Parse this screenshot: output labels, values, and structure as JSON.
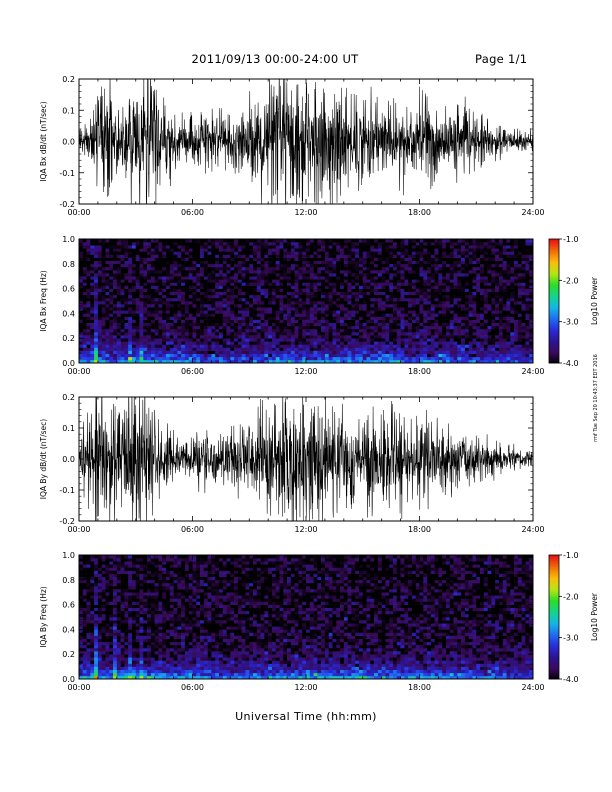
{
  "header": {
    "title": "2011/09/13  00:00-24:00 UT",
    "page": "Page 1/1"
  },
  "footer": {
    "xlabel": "Universal Time (hh:mm)",
    "side_note": "rmf Tue Sep 20 10:43:37 EDT 2016"
  },
  "colors": {
    "frame": "#000000",
    "trace": "#000000",
    "colorscale": [
      "#000000",
      "#3a0a5e",
      "#2c1590",
      "#2a2ad8",
      "#1e6cf0",
      "#16b4e8",
      "#14d48c",
      "#2cdc28",
      "#b4e614",
      "#fabe0a",
      "#f06e0a",
      "#e61414"
    ]
  },
  "chart_data": [
    {
      "type": "line",
      "ylabel": "IQA Bx dB/dt (nT/sec)",
      "xlim": [
        0,
        24
      ],
      "ylim": [
        -0.2,
        0.2
      ],
      "yticks": [
        "-0.2",
        "-0.1",
        "0.0",
        "0.1",
        "0.2"
      ],
      "xticks": [
        "00:00",
        "06:00",
        "12:00",
        "18:00",
        "24:00"
      ],
      "envelope": {
        "hours": [
          0,
          0.5,
          1,
          1.5,
          2,
          2.5,
          3,
          3.5,
          4,
          4.5,
          5,
          5.5,
          6,
          6.5,
          7,
          7.5,
          8,
          8.5,
          9,
          9.5,
          10,
          10.5,
          11,
          11.5,
          12,
          12.5,
          13,
          13.5,
          14,
          14.5,
          15,
          15.5,
          16,
          16.5,
          17,
          17.5,
          18,
          18.5,
          19,
          19.5,
          20,
          20.5,
          21,
          21.5,
          22,
          22.5,
          23,
          23.5,
          24
        ],
        "amplitude": [
          0.05,
          0.06,
          0.12,
          0.2,
          0.08,
          0.15,
          0.22,
          0.22,
          0.18,
          0.1,
          0.08,
          0.06,
          0.07,
          0.07,
          0.08,
          0.08,
          0.07,
          0.08,
          0.12,
          0.15,
          0.18,
          0.2,
          0.2,
          0.2,
          0.2,
          0.2,
          0.18,
          0.16,
          0.15,
          0.13,
          0.12,
          0.14,
          0.12,
          0.11,
          0.12,
          0.14,
          0.13,
          0.12,
          0.1,
          0.09,
          0.1,
          0.08,
          0.07,
          0.06,
          0.05,
          0.04,
          0.03,
          0.03,
          0.025
        ]
      }
    },
    {
      "type": "heatmap",
      "ylabel": "IQA Bx Freq (Hz)",
      "colorbar_label": "Log10 Power",
      "colorbar_ticks": [
        "-1.0",
        "-2.0",
        "-3.0",
        "-4.0"
      ],
      "clim": [
        -4.0,
        -1.0
      ],
      "xlim": [
        0,
        24
      ],
      "ylim": [
        0.0,
        1.0
      ],
      "yticks": [
        "0.0",
        "0.2",
        "0.4",
        "0.6",
        "0.8",
        "1.0"
      ],
      "xticks": [
        "00:00",
        "06:00",
        "12:00",
        "18:00",
        "24:00"
      ],
      "features": {
        "spike_hours": [
          0.9,
          2.75,
          3.25
        ],
        "low_band_level_by_hour": [
          -3.0,
          -3.0,
          -3.2,
          -2.6,
          -2.8,
          -3.0,
          -3.1,
          -3.2,
          -3.2,
          -3.1,
          -3.1,
          -3.0,
          -2.9,
          -2.9,
          -2.9,
          -2.9,
          -2.9,
          -2.9,
          -3.0,
          -3.0,
          -3.1,
          -3.1,
          -3.2,
          -3.2,
          -3.3
        ]
      }
    },
    {
      "type": "line",
      "ylabel": "IQA By dB/dt (nT/sec)",
      "xlim": [
        0,
        24
      ],
      "ylim": [
        -0.2,
        0.2
      ],
      "yticks": [
        "-0.2",
        "-0.1",
        "0.0",
        "0.1",
        "0.2"
      ],
      "xticks": [
        "00:00",
        "06:00",
        "12:00",
        "18:00",
        "24:00"
      ],
      "envelope": {
        "hours": [
          0,
          0.5,
          1,
          1.5,
          2,
          2.5,
          3,
          3.5,
          4,
          4.5,
          5,
          5.5,
          6,
          6.5,
          7,
          7.5,
          8,
          8.5,
          9,
          9.5,
          10,
          10.5,
          11,
          11.5,
          12,
          12.5,
          13,
          13.5,
          14,
          14.5,
          15,
          15.5,
          16,
          16.5,
          17,
          17.5,
          18,
          18.5,
          19,
          19.5,
          20,
          20.5,
          21,
          21.5,
          22,
          22.5,
          23,
          23.5,
          24
        ],
        "amplitude": [
          0.06,
          0.12,
          0.18,
          0.2,
          0.14,
          0.22,
          0.22,
          0.22,
          0.14,
          0.09,
          0.07,
          0.06,
          0.07,
          0.08,
          0.08,
          0.07,
          0.08,
          0.1,
          0.12,
          0.16,
          0.2,
          0.18,
          0.2,
          0.2,
          0.18,
          0.18,
          0.16,
          0.15,
          0.13,
          0.12,
          0.13,
          0.14,
          0.12,
          0.13,
          0.14,
          0.15,
          0.13,
          0.12,
          0.1,
          0.1,
          0.09,
          0.08,
          0.07,
          0.06,
          0.05,
          0.04,
          0.035,
          0.03,
          0.03
        ]
      }
    },
    {
      "type": "heatmap",
      "ylabel": "IQA By Freq (Hz)",
      "colorbar_label": "Log10 Power",
      "colorbar_ticks": [
        "-1.0",
        "-2.0",
        "-3.0",
        "-4.0"
      ],
      "clim": [
        -4.0,
        -1.0
      ],
      "xlim": [
        0,
        24
      ],
      "ylim": [
        0.0,
        1.0
      ],
      "yticks": [
        "0.0",
        "0.2",
        "0.4",
        "0.6",
        "0.8",
        "1.0"
      ],
      "xticks": [
        "00:00",
        "06:00",
        "12:00",
        "18:00",
        "24:00"
      ],
      "features": {
        "spike_hours": [
          0.9,
          1.9,
          2.75,
          3.25
        ],
        "low_band_level_by_hour": [
          -2.9,
          -2.8,
          -2.9,
          -2.2,
          -2.6,
          -2.9,
          -3.0,
          -3.1,
          -3.1,
          -3.0,
          -3.0,
          -2.9,
          -2.7,
          -2.7,
          -2.8,
          -2.8,
          -2.9,
          -2.9,
          -2.9,
          -3.0,
          -3.0,
          -3.1,
          -3.1,
          -3.2,
          -3.2
        ]
      }
    }
  ]
}
